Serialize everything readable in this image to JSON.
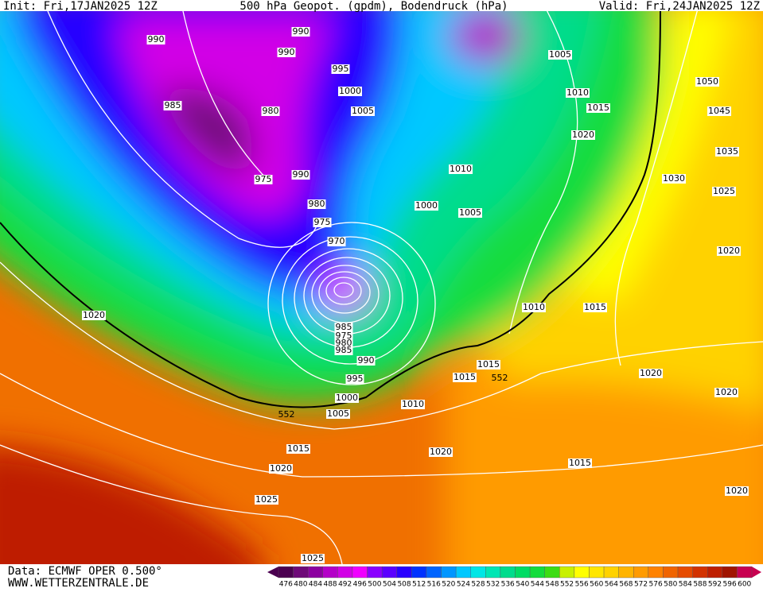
{
  "header": {
    "init": "Init: Fri,17JAN2025 12Z",
    "title": "500 hPa Geopot. (gpdm), Bodendruck (hPa)",
    "valid": "Valid: Fri,24JAN2025 12Z"
  },
  "isobar_labels": [
    990,
    990,
    990,
    995,
    1000,
    1005,
    985,
    980,
    975,
    990,
    980,
    975,
    970,
    1000,
    1005,
    1010,
    1005,
    1010,
    1015,
    1020,
    1050,
    1045,
    1035,
    1030,
    1025,
    1020,
    1015,
    1010,
    1020,
    985,
    975,
    980,
    985,
    990,
    995,
    1000,
    1005,
    1010,
    1015,
    1015,
    1020,
    1020,
    1015,
    1020,
    1025,
    1020,
    1015,
    1020,
    1025
  ],
  "geopot_labels": [
    552,
    552
  ],
  "colorbar": {
    "ticks": [
      476,
      480,
      484,
      488,
      492,
      496,
      500,
      504,
      508,
      512,
      516,
      520,
      524,
      528,
      532,
      536,
      540,
      544,
      548,
      552,
      556,
      560,
      564,
      568,
      572,
      576,
      580,
      584,
      588,
      592,
      596,
      600
    ],
    "colors": [
      "#4b0050",
      "#6e0a78",
      "#8c00a0",
      "#b400c8",
      "#d200e6",
      "#f000ff",
      "#8a00ff",
      "#5a00ff",
      "#2800ff",
      "#0032ff",
      "#0064ff",
      "#0096ff",
      "#00c8ff",
      "#00e6e6",
      "#00e6b4",
      "#00dc8c",
      "#00dc64",
      "#14dc3c",
      "#3cdc14",
      "#c8f000",
      "#ffff00",
      "#ffe600",
      "#ffd200",
      "#ffb400",
      "#ff9b00",
      "#ff8200",
      "#f06400",
      "#e64b00",
      "#d23200",
      "#be1e00",
      "#a01400",
      "#c80050"
    ]
  },
  "footer": {
    "data": "Data: ECMWF OPER 0.500°",
    "site": "WWW.WETTERZENTRALE.DE"
  }
}
